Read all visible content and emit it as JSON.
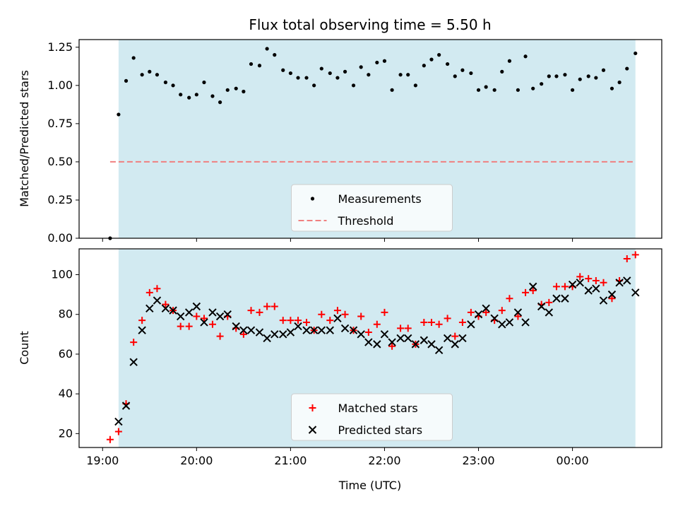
{
  "chart_data": [
    {
      "type": "scatter",
      "title": "Flux total observing time = 5.50 h",
      "xlabel": "",
      "ylabel": "Matched/Predicted stars",
      "xlim": [
        18.75,
        24.95
      ],
      "ylim": [
        0.0,
        1.3
      ],
      "yticks": [
        "0.00",
        "0.25",
        "0.50",
        "0.75",
        "1.00",
        "1.25"
      ],
      "yticks_values": [
        0.0,
        0.25,
        0.5,
        0.75,
        1.0,
        1.25
      ],
      "xticks_values": [
        19,
        20,
        21,
        22,
        23,
        24
      ],
      "shaded_region": {
        "x0": 19.17,
        "x1": 24.67,
        "color": "#add8e6"
      },
      "legend": {
        "position": "lower-center"
      },
      "series": [
        {
          "name": "Measurements",
          "marker": "dot",
          "color": "#000000",
          "x": [
            19.08,
            19.17,
            19.25,
            19.33,
            19.42,
            19.5,
            19.58,
            19.67,
            19.75,
            19.83,
            19.92,
            20.0,
            20.08,
            20.17,
            20.25,
            20.33,
            20.42,
            20.5,
            20.58,
            20.67,
            20.75,
            20.83,
            20.92,
            21.0,
            21.08,
            21.17,
            21.25,
            21.33,
            21.42,
            21.5,
            21.58,
            21.67,
            21.75,
            21.83,
            21.92,
            22.0,
            22.08,
            22.17,
            22.25,
            22.33,
            22.42,
            22.5,
            22.58,
            22.67,
            22.75,
            22.83,
            22.92,
            23.0,
            23.08,
            23.17,
            23.25,
            23.33,
            23.42,
            23.5,
            23.58,
            23.67,
            23.75,
            23.83,
            23.92,
            24.0,
            24.08,
            24.17,
            24.25,
            24.33,
            24.42,
            24.5,
            24.58,
            24.67
          ],
          "y": [
            0.0,
            0.81,
            1.03,
            1.18,
            1.07,
            1.09,
            1.07,
            1.02,
            1.0,
            0.94,
            0.92,
            0.94,
            1.02,
            0.93,
            0.89,
            0.97,
            0.98,
            0.96,
            1.14,
            1.13,
            1.24,
            1.2,
            1.1,
            1.08,
            1.05,
            1.05,
            1.0,
            1.11,
            1.08,
            1.05,
            1.09,
            1.0,
            1.12,
            1.07,
            1.15,
            1.16,
            0.97,
            1.07,
            1.07,
            1.0,
            1.13,
            1.17,
            1.2,
            1.14,
            1.06,
            1.1,
            1.08,
            0.97,
            0.99,
            0.97,
            1.09,
            1.16,
            0.97,
            1.19,
            0.98,
            1.01,
            1.06,
            1.06,
            1.07,
            0.97,
            1.04,
            1.06,
            1.05,
            1.1,
            0.98,
            1.02,
            1.11,
            1.21
          ]
        },
        {
          "name": "Threshold",
          "type": "line",
          "style": "dashed",
          "color": "#f08080",
          "x": [
            19.08,
            24.67
          ],
          "y": [
            0.5,
            0.5
          ]
        }
      ]
    },
    {
      "type": "scatter",
      "title": "",
      "xlabel": "Time (UTC)",
      "ylabel": "Count",
      "xlim": [
        18.75,
        24.95
      ],
      "ylim": [
        13,
        113
      ],
      "yticks": [
        "20",
        "40",
        "60",
        "80",
        "100"
      ],
      "yticks_values": [
        20,
        40,
        60,
        80,
        100
      ],
      "xticks": [
        "19:00",
        "20:00",
        "21:00",
        "22:00",
        "23:00",
        "00:00"
      ],
      "xticks_values": [
        19,
        20,
        21,
        22,
        23,
        24
      ],
      "shaded_region": {
        "x0": 19.17,
        "x1": 24.67,
        "color": "#add8e6"
      },
      "legend": {
        "position": "lower-center"
      },
      "series": [
        {
          "name": "Matched stars",
          "marker": "plus",
          "color": "#ff0000",
          "x": [
            19.08,
            19.17,
            19.25,
            19.33,
            19.42,
            19.5,
            19.58,
            19.67,
            19.75,
            19.83,
            19.92,
            20.0,
            20.08,
            20.17,
            20.25,
            20.33,
            20.42,
            20.5,
            20.58,
            20.67,
            20.75,
            20.83,
            20.92,
            21.0,
            21.08,
            21.17,
            21.25,
            21.33,
            21.42,
            21.5,
            21.58,
            21.67,
            21.75,
            21.83,
            21.92,
            22.0,
            22.08,
            22.17,
            22.25,
            22.33,
            22.42,
            22.5,
            22.58,
            22.67,
            22.75,
            22.83,
            22.92,
            23.0,
            23.08,
            23.17,
            23.25,
            23.33,
            23.42,
            23.5,
            23.58,
            23.67,
            23.75,
            23.83,
            23.92,
            24.0,
            24.08,
            24.17,
            24.25,
            24.33,
            24.42,
            24.5,
            24.58,
            24.67
          ],
          "y": [
            17,
            21,
            35,
            66,
            77,
            91,
            93,
            85,
            82,
            74,
            74,
            79,
            78,
            75,
            69,
            79,
            73,
            70,
            82,
            81,
            84,
            84,
            77,
            77,
            77,
            76,
            72,
            80,
            77,
            82,
            80,
            72,
            79,
            71,
            75,
            81,
            64,
            73,
            73,
            65,
            76,
            76,
            75,
            78,
            69,
            76,
            81,
            79,
            81,
            77,
            82,
            88,
            79,
            91,
            92,
            85,
            86,
            94,
            94,
            94,
            99,
            98,
            97,
            96,
            88,
            97,
            108,
            110
          ]
        },
        {
          "name": "Predicted stars",
          "marker": "x",
          "color": "#000000",
          "x": [
            19.08,
            19.17,
            19.25,
            19.33,
            19.42,
            19.5,
            19.58,
            19.67,
            19.75,
            19.83,
            19.92,
            20.0,
            20.08,
            20.17,
            20.25,
            20.33,
            20.42,
            20.5,
            20.58,
            20.67,
            20.75,
            20.83,
            20.92,
            21.0,
            21.08,
            21.17,
            21.25,
            21.33,
            21.42,
            21.5,
            21.58,
            21.67,
            21.75,
            21.83,
            21.92,
            22.0,
            22.08,
            22.17,
            22.25,
            22.33,
            22.42,
            22.5,
            22.58,
            22.67,
            22.75,
            22.83,
            22.92,
            23.0,
            23.08,
            23.17,
            23.25,
            23.33,
            23.42,
            23.5,
            23.58,
            23.67,
            23.75,
            23.83,
            23.92,
            24.0,
            24.08,
            24.17,
            24.25,
            24.33,
            24.42,
            24.5,
            24.58,
            24.67
          ],
          "y": [
            null,
            26,
            34,
            56,
            72,
            83,
            87,
            83,
            82,
            79,
            81,
            84,
            76,
            81,
            79,
            80,
            74,
            72,
            72,
            71,
            68,
            70,
            70,
            71,
            74,
            72,
            72,
            72,
            72,
            78,
            73,
            72,
            70,
            66,
            65,
            70,
            66,
            68,
            68,
            65,
            67,
            65,
            62,
            68,
            65,
            68,
            75,
            80,
            83,
            78,
            75,
            76,
            81,
            76,
            94,
            84,
            81,
            88,
            88,
            95,
            96,
            92,
            93,
            87,
            90,
            96,
            97,
            91
          ]
        }
      ]
    }
  ]
}
